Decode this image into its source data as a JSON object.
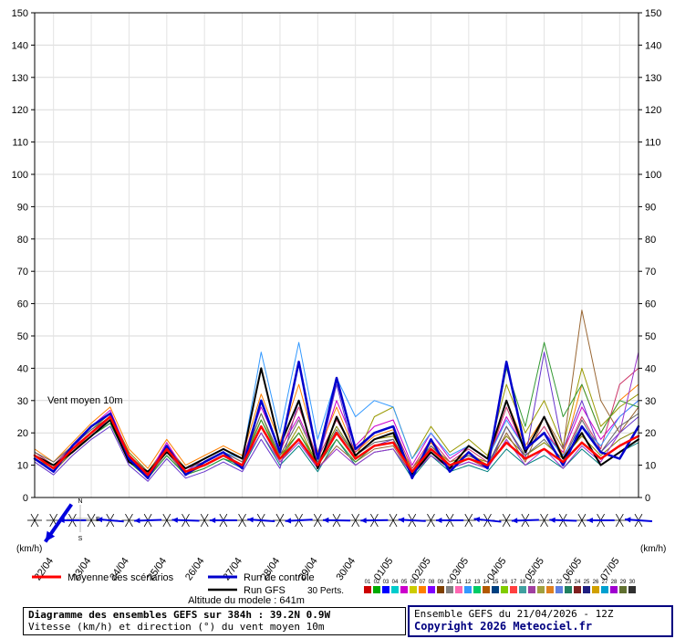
{
  "chart": {
    "unit_left": "(km/h)",
    "unit_right": "(km/h)",
    "inplot_label": "Vent moyen 10m",
    "y_ticks": [
      0,
      10,
      20,
      30,
      40,
      50,
      60,
      70,
      80,
      90,
      100,
      110,
      120,
      130,
      140,
      150
    ],
    "dates": [
      "22/04",
      "23/04",
      "24/04",
      "25/04",
      "26/04",
      "27/04",
      "28/04",
      "29/04",
      "30/04",
      "01/05",
      "02/05",
      "03/05",
      "04/05",
      "05/05",
      "06/05",
      "07/05"
    ]
  },
  "compass": {
    "n": "N",
    "e": "E",
    "s": "S"
  },
  "chart_data": {
    "type": "line",
    "title": "Diagramme des ensembles GEFS sur 384h : 39.2N 0.9W",
    "ylabel": "Vitesse (km/h)",
    "ylim": [
      0,
      150
    ],
    "x_hours": [
      0,
      12,
      24,
      36,
      48,
      60,
      72,
      84,
      96,
      108,
      120,
      132,
      144,
      156,
      168,
      180,
      192,
      204,
      216,
      228,
      240,
      252,
      264,
      276,
      288,
      300,
      312,
      324,
      336,
      348,
      360,
      372,
      384
    ],
    "date_hours": [
      12,
      36,
      60,
      84,
      108,
      132,
      156,
      180,
      204,
      228,
      252,
      276,
      300,
      324,
      348,
      372
    ],
    "arrow_angles_deg": [
      235,
      180,
      175,
      182,
      178,
      180,
      176,
      183,
      179,
      181,
      177,
      180,
      174,
      182,
      178,
      180,
      176
    ],
    "series": [
      {
        "name": "Pert. 01",
        "role": "member",
        "color": "#808000",
        "width": 1,
        "values": [
          14,
          10,
          16,
          21,
          26,
          14,
          8,
          16,
          9,
          11,
          14,
          11,
          24,
          13,
          20,
          11,
          22,
          13,
          18,
          19,
          9,
          16,
          11,
          13,
          11,
          19,
          13,
          17,
          12,
          19,
          13,
          18,
          21
        ]
      },
      {
        "name": "Pert. 02",
        "role": "member",
        "color": "#008080",
        "width": 1,
        "values": [
          12,
          8,
          14,
          19,
          23,
          11,
          6,
          13,
          7,
          9,
          12,
          9,
          20,
          10,
          16,
          8,
          18,
          10,
          14,
          15,
          6,
          13,
          8,
          10,
          8,
          15,
          10,
          13,
          9,
          15,
          10,
          14,
          17
        ]
      },
      {
        "name": "Pert. 03",
        "role": "member",
        "color": "#cc00cc",
        "width": 1,
        "values": [
          13,
          9,
          15,
          22,
          27,
          13,
          7,
          17,
          8,
          12,
          15,
          12,
          28,
          15,
          25,
          12,
          30,
          16,
          22,
          24,
          10,
          20,
          12,
          16,
          12,
          25,
          15,
          20,
          14,
          28,
          18,
          25,
          30
        ]
      },
      {
        "name": "Pert. 04",
        "role": "member",
        "color": "#ff8000",
        "width": 1,
        "values": [
          15,
          11,
          17,
          23,
          28,
          15,
          9,
          18,
          10,
          13,
          16,
          13,
          32,
          17,
          35,
          14,
          28,
          14,
          19,
          21,
          8,
          17,
          10,
          14,
          10,
          30,
          16,
          25,
          13,
          35,
          20,
          30,
          35
        ]
      },
      {
        "name": "Pert. 05",
        "role": "member",
        "color": "#6633cc",
        "width": 1,
        "values": [
          11,
          7,
          13,
          18,
          22,
          10,
          5,
          12,
          6,
          8,
          11,
          8,
          18,
          9,
          30,
          10,
          35,
          12,
          16,
          18,
          7,
          14,
          9,
          11,
          9,
          22,
          12,
          45,
          15,
          30,
          14,
          20,
          25
        ]
      },
      {
        "name": "Pert. 06",
        "role": "member",
        "color": "#999900",
        "width": 1,
        "values": [
          13,
          9,
          15,
          20,
          24,
          12,
          7,
          14,
          8,
          10,
          13,
          10,
          26,
          12,
          22,
          10,
          20,
          12,
          25,
          28,
          12,
          22,
          14,
          18,
          13,
          35,
          20,
          30,
          16,
          40,
          22,
          28,
          32
        ]
      },
      {
        "name": "Pert. 07",
        "role": "member",
        "color": "#cc3366",
        "width": 1,
        "values": [
          14,
          10,
          16,
          22,
          26,
          13,
          8,
          15,
          9,
          11,
          14,
          11,
          30,
          14,
          28,
          12,
          24,
          14,
          20,
          22,
          9,
          18,
          11,
          15,
          11,
          28,
          14,
          22,
          12,
          25,
          15,
          35,
          40
        ]
      },
      {
        "name": "Pert. 08",
        "role": "member",
        "color": "#996633",
        "width": 1,
        "values": [
          12,
          8,
          14,
          20,
          25,
          12,
          6,
          14,
          7,
          10,
          13,
          9,
          22,
          11,
          18,
          9,
          16,
          11,
          15,
          16,
          7,
          14,
          9,
          12,
          9,
          20,
          11,
          25,
          15,
          58,
          30,
          20,
          28
        ]
      },
      {
        "name": "Pert. 09",
        "role": "member",
        "color": "#3399ff",
        "width": 1,
        "values": [
          13,
          9,
          16,
          21,
          25,
          13,
          7,
          15,
          8,
          11,
          14,
          12,
          45,
          20,
          48,
          18,
          37,
          25,
          30,
          28,
          12,
          20,
          13,
          16,
          12,
          24,
          15,
          20,
          13,
          22,
          16,
          25,
          30
        ]
      },
      {
        "name": "Pert. 10",
        "role": "member",
        "color": "#339933",
        "width": 1,
        "values": [
          12,
          9,
          14,
          19,
          23,
          11,
          6,
          13,
          7,
          9,
          12,
          10,
          24,
          12,
          20,
          10,
          18,
          11,
          16,
          17,
          8,
          15,
          10,
          12,
          10,
          40,
          22,
          48,
          25,
          35,
          20,
          30,
          28
        ]
      },
      {
        "name": "Pert. 11",
        "role": "member",
        "color": "#9933cc",
        "width": 1,
        "values": [
          13,
          10,
          15,
          20,
          24,
          12,
          7,
          14,
          8,
          10,
          13,
          10,
          20,
          11,
          17,
          9,
          15,
          10,
          14,
          15,
          7,
          13,
          9,
          11,
          9,
          18,
          10,
          15,
          9,
          16,
          11,
          20,
          45
        ]
      },
      {
        "name": "Pert. 12",
        "role": "member",
        "color": "#666666",
        "width": 1,
        "values": [
          14,
          11,
          16,
          21,
          25,
          13,
          8,
          15,
          9,
          11,
          14,
          11,
          26,
          13,
          24,
          11,
          21,
          13,
          17,
          18,
          8,
          16,
          10,
          13,
          10,
          22,
          13,
          18,
          11,
          24,
          14,
          22,
          26
        ]
      },
      {
        "name": "Run GFS",
        "role": "gfs",
        "color": "#000000",
        "width": 2,
        "values": [
          13,
          10,
          14,
          19,
          24,
          11,
          8,
          14,
          9,
          12,
          15,
          12,
          40,
          16,
          30,
          9,
          25,
          13,
          18,
          20,
          7,
          14,
          9,
          16,
          12,
          30,
          14,
          25,
          12,
          20,
          10,
          14,
          18
        ]
      },
      {
        "name": "Run de contrôle",
        "role": "control",
        "color": "#0000cc",
        "width": 2.5,
        "values": [
          12,
          8,
          16,
          22,
          26,
          12,
          6,
          16,
          7,
          11,
          14,
          9,
          30,
          14,
          42,
          12,
          37,
          15,
          20,
          22,
          6,
          18,
          8,
          14,
          9,
          42,
          15,
          20,
          10,
          22,
          14,
          12,
          22
        ]
      },
      {
        "name": "Moyenne des scénarios",
        "role": "mean",
        "color": "#ff0000",
        "width": 2.5,
        "values": [
          13,
          9,
          15,
          20,
          25,
          13,
          7,
          15,
          8,
          10,
          13,
          10,
          22,
          12,
          18,
          10,
          20,
          12,
          16,
          17,
          8,
          15,
          10,
          12,
          10,
          17,
          12,
          15,
          11,
          17,
          12,
          16,
          19
        ]
      }
    ]
  },
  "legend": {
    "mean_label": "Moyenne des scénarios",
    "control_label": "Run de contrôle",
    "gfs_label": "Run GFS",
    "perts_label": "30 Perts.",
    "altitude_label": "Altitude du modele : 641m",
    "pert_numbers": [
      "01",
      "02",
      "03",
      "04",
      "05",
      "06",
      "07",
      "08",
      "09",
      "10",
      "11",
      "12",
      "13",
      "14",
      "15",
      "16",
      "17",
      "18",
      "19",
      "20",
      "21",
      "22",
      "23",
      "24",
      "25",
      "26",
      "27",
      "28",
      "29",
      "30"
    ],
    "pert_colors": [
      "#cc0000",
      "#00aa00",
      "#0000ff",
      "#00cccc",
      "#cc00cc",
      "#cccc00",
      "#ff8000",
      "#8000ff",
      "#804000",
      "#808080",
      "#ff66b2",
      "#3399ff",
      "#00cc66",
      "#b25900",
      "#004080",
      "#80cc00",
      "#ff4040",
      "#40a0a0",
      "#a040a0",
      "#a0a040",
      "#e08020",
      "#6080e0",
      "#208060",
      "#802020",
      "#202080",
      "#d0a000",
      "#00a0d0",
      "#a000d0",
      "#607030",
      "#303030"
    ]
  },
  "footer": {
    "title_line1": "Diagramme des ensembles GEFS sur 384h : 39.2N 0.9W",
    "title_line2": "Vitesse (km/h) et direction (°) du vent moyen 10m",
    "run_label": "Ensemble GEFS du 21/04/2026 - 12Z",
    "copyright": "Copyright 2026 Meteociel.fr"
  }
}
